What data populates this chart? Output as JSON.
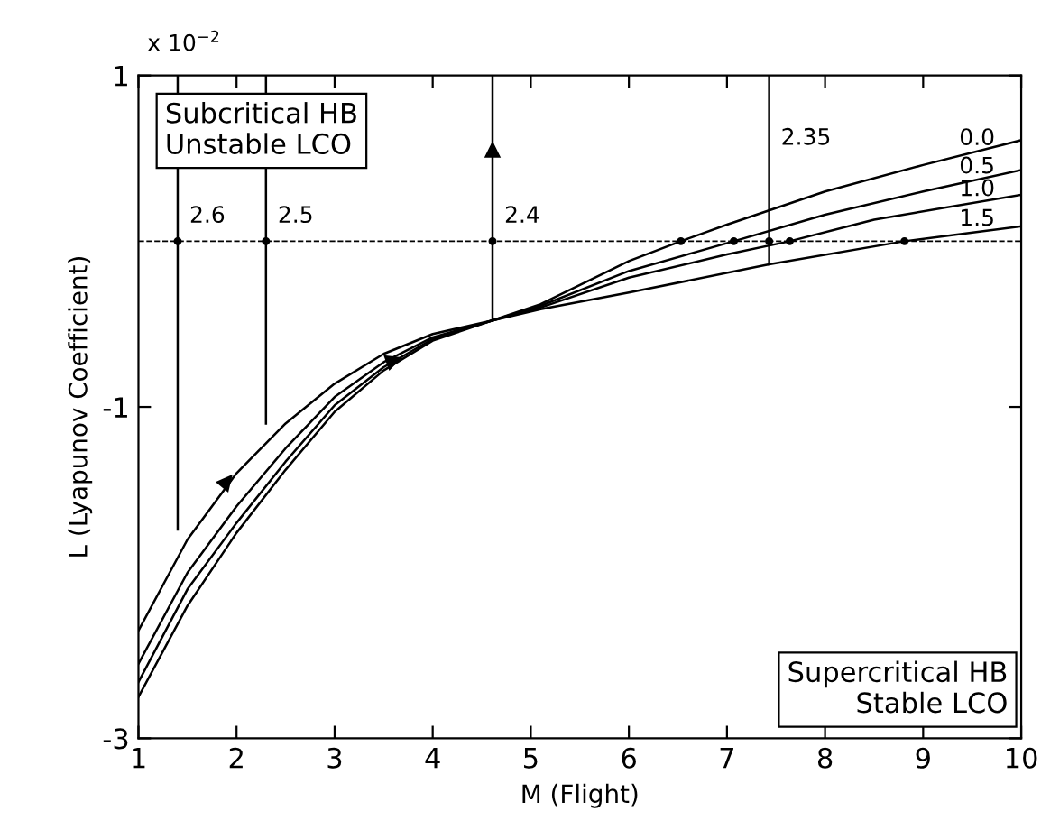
{
  "chart_data": {
    "type": "line",
    "xlabel": "M (Flight)",
    "ylabel": "L (Lyapunov Coefficient)",
    "annotations": [
      "x 10$^{−2}$",
      "Subcritical HB\nUnstable LCO",
      "Supercritical HB\nStable LCO"
    ],
    "xlim": [
      1,
      10
    ],
    "ylim": [
      -3,
      1
    ],
    "xticks": [
      1,
      2,
      3,
      4,
      5,
      6,
      7,
      8,
      9,
      10
    ],
    "yticks": [
      1,
      -1,
      -3
    ],
    "grid": false,
    "legend": false,
    "marker": "none",
    "line_style": "solid",
    "ref_lines": [
      {
        "axis": "y",
        "value": 0,
        "label": null,
        "line_style": "dashed",
        "color": "#000000"
      }
    ],
    "series": [
      {
        "name": "0.0",
        "color": "#000000",
        "x": [
          1,
          1.5,
          2,
          2.5,
          3,
          3.5,
          4,
          4.6,
          5.1,
          6,
          6.53,
          7,
          8,
          9,
          10
        ],
        "values": [
          -2.75,
          -2.2,
          -1.76,
          -1.38,
          -1.03,
          -0.78,
          -0.6,
          -0.48,
          -0.38,
          -0.12,
          0,
          0.1,
          0.3,
          0.46,
          0.61
        ]
      },
      {
        "name": "0.5",
        "color": "#000000",
        "x": [
          1,
          1.5,
          2,
          2.5,
          3,
          3.5,
          4,
          4.6,
          5.1,
          6,
          7.07,
          8,
          9,
          10
        ],
        "values": [
          -2.66,
          -2.1,
          -1.7,
          -1.33,
          -0.99,
          -0.76,
          -0.59,
          -0.48,
          -0.39,
          -0.18,
          0,
          0.16,
          0.3,
          0.43
        ]
      },
      {
        "name": "1.0",
        "color": "#000000",
        "x": [
          1,
          1.5,
          2,
          2.5,
          3,
          3.5,
          4,
          4.6,
          5.1,
          6,
          7,
          7.64,
          8.5,
          10
        ],
        "values": [
          -2.55,
          -2.0,
          -1.6,
          -1.25,
          -0.94,
          -0.73,
          -0.58,
          -0.48,
          -0.4,
          -0.22,
          -0.08,
          0,
          0.13,
          0.28
        ]
      },
      {
        "name": "1.5",
        "color": "#000000",
        "x": [
          1,
          1.5,
          2,
          2.5,
          3,
          3.5,
          4,
          4.6,
          5.1,
          6,
          7.43,
          8.81,
          10
        ],
        "values": [
          -2.35,
          -1.8,
          -1.4,
          -1.1,
          -0.86,
          -0.68,
          -0.56,
          -0.48,
          -0.41,
          -0.31,
          -0.14,
          0,
          0.09
        ]
      },
      {
        "name": "2.6",
        "color": "#000000",
        "x": [
          1.4,
          1.4
        ],
        "values": [
          -1.74,
          1
        ]
      },
      {
        "name": "2.5",
        "color": "#000000",
        "x": [
          2.3,
          2.3
        ],
        "values": [
          -1.1,
          1
        ]
      },
      {
        "name": "2.4",
        "color": "#000000",
        "x": [
          4.61,
          4.61
        ],
        "values": [
          -0.48,
          1
        ]
      },
      {
        "name": "2.35",
        "color": "#000000",
        "x": [
          7.43,
          7.43
        ],
        "values": [
          -0.14,
          1
        ]
      },
      {
        "type": "scatter",
        "color": "#000000",
        "marker": "circle",
        "x": [
          1.4,
          2.3,
          4.61,
          6.53,
          7.07,
          7.43,
          7.64,
          8.81
        ],
        "values": [
          0,
          0,
          0,
          0,
          0,
          0,
          0,
          0
        ]
      }
    ]
  }
}
